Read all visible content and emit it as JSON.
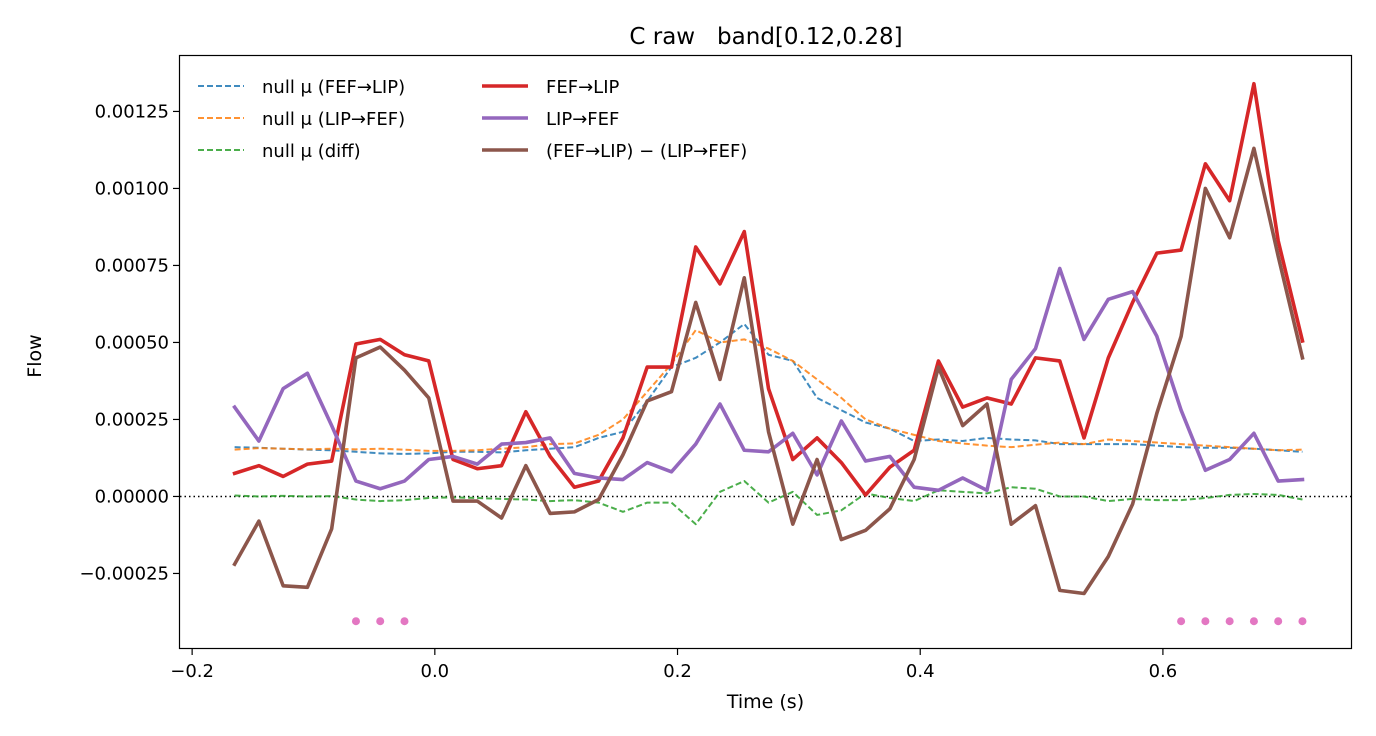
{
  "chart_data": {
    "type": "line",
    "title": "C raw   band[0.12,0.28]",
    "xlabel": "Time (s)",
    "ylabel": "Flow",
    "xlim": [
      -0.21,
      0.755
    ],
    "ylim": [
      -0.000492,
      0.00143
    ],
    "xticks": [
      -0.2,
      0.0,
      0.2,
      0.4,
      0.6
    ],
    "xtick_labels": [
      "−0.2",
      "0.0",
      "0.2",
      "0.4",
      "0.6"
    ],
    "yticks": [
      -0.00025,
      0.0,
      0.00025,
      0.0005,
      0.00075,
      0.001,
      0.00125
    ],
    "ytick_labels": [
      "−0.00025",
      "0.00000",
      "0.00025",
      "0.00050",
      "0.00075",
      "0.00100",
      "0.00125"
    ],
    "grid": false,
    "legend_position": "upper-left",
    "zero_line": true,
    "x": [
      -0.165,
      -0.145,
      -0.125,
      -0.105,
      -0.085,
      -0.065,
      -0.045,
      -0.025,
      -0.005,
      0.015,
      0.035,
      0.055,
      0.075,
      0.095,
      0.115,
      0.135,
      0.155,
      0.175,
      0.195,
      0.215,
      0.235,
      0.255,
      0.275,
      0.295,
      0.315,
      0.335,
      0.355,
      0.375,
      0.395,
      0.415,
      0.435,
      0.455,
      0.475,
      0.495,
      0.515,
      0.535,
      0.555,
      0.575,
      0.595,
      0.615,
      0.635,
      0.655,
      0.675,
      0.695,
      0.715
    ],
    "series": [
      {
        "name": "null μ (FEF→LIP)",
        "style": "dashed",
        "color": "#1f77b4",
        "values": [
          0.00016,
          0.000158,
          0.000155,
          0.000152,
          0.00015,
          0.000145,
          0.00014,
          0.000138,
          0.00014,
          0.000145,
          0.000145,
          0.000143,
          0.00015,
          0.000155,
          0.00016,
          0.00019,
          0.00021,
          0.00031,
          0.00042,
          0.00045,
          0.0005,
          0.00056,
          0.00046,
          0.00044,
          0.00032,
          0.00028,
          0.00024,
          0.00022,
          0.00018,
          0.000185,
          0.00018,
          0.00019,
          0.000185,
          0.000182,
          0.00017,
          0.00017,
          0.00017,
          0.00017,
          0.000165,
          0.00016,
          0.000158,
          0.000158,
          0.000155,
          0.00015,
          0.000145
        ]
      },
      {
        "name": "null μ (LIP→FEF)",
        "style": "dashed",
        "color": "#ff7f0e",
        "values": [
          0.000152,
          0.000157,
          0.000155,
          0.000153,
          0.000155,
          0.000153,
          0.000155,
          0.000152,
          0.000148,
          0.000148,
          0.00015,
          0.000155,
          0.00016,
          0.00017,
          0.000172,
          0.0002,
          0.00025,
          0.00034,
          0.00043,
          0.00054,
          0.0005,
          0.00051,
          0.00048,
          0.00044,
          0.00038,
          0.00032,
          0.00025,
          0.00022,
          0.0002,
          0.00018,
          0.000172,
          0.000165,
          0.00016,
          0.000168,
          0.000175,
          0.00017,
          0.000185,
          0.00018,
          0.000175,
          0.00017,
          0.000165,
          0.00016,
          0.000155,
          0.00015,
          0.000152
        ]
      },
      {
        "name": "null μ (diff)",
        "style": "dashed",
        "color": "#2ca02c",
        "values": [
          3e-06,
          0.0,
          2e-06,
          0.0,
          1e-06,
          -1e-05,
          -1.5e-05,
          -1.2e-05,
          -5e-06,
          -3e-06,
          -5e-06,
          -8e-06,
          -1e-05,
          -1.5e-05,
          -1.2e-05,
          -2e-05,
          -5e-05,
          -2e-05,
          -2e-05,
          -9e-05,
          1.5e-05,
          5e-05,
          -2e-05,
          1.5e-05,
          -6e-05,
          -4.5e-05,
          1e-05,
          -5e-06,
          -1.5e-05,
          2e-05,
          1.5e-05,
          1e-05,
          3e-05,
          2.5e-05,
          0.0,
          0.0,
          -1.5e-05,
          -8e-06,
          -1.2e-05,
          -1.2e-05,
          -5e-06,
          5e-06,
          8e-06,
          5e-06,
          -1e-05
        ]
      },
      {
        "name": "FEF→LIP",
        "style": "solid",
        "color": "#d62728",
        "values": [
          7.5e-05,
          0.0001,
          6.5e-05,
          0.000105,
          0.000115,
          0.000495,
          0.00051,
          0.00046,
          0.00044,
          0.00012,
          9e-05,
          0.0001,
          0.000275,
          0.00013,
          3e-05,
          5e-05,
          0.00019,
          0.00042,
          0.00042,
          0.00081,
          0.00069,
          0.00086,
          0.00035,
          0.00012,
          0.00019,
          0.00011,
          5e-06,
          9.5e-05,
          0.00015,
          0.00044,
          0.00029,
          0.00032,
          0.0003,
          0.00045,
          0.00044,
          0.00019,
          0.00045,
          0.00063,
          0.00079,
          0.0008,
          0.00108,
          0.00096,
          0.00134,
          0.00083,
          0.000505
        ]
      },
      {
        "name": "LIP→FEF",
        "style": "solid",
        "color": "#9467bd",
        "values": [
          0.00029,
          0.00018,
          0.00035,
          0.0004,
          0.00023,
          5e-05,
          2.5e-05,
          5e-05,
          0.00012,
          0.00013,
          0.000105,
          0.00017,
          0.000175,
          0.00019,
          7.5e-05,
          6e-05,
          5.5e-05,
          0.00011,
          8e-05,
          0.00017,
          0.0003,
          0.00015,
          0.000145,
          0.000205,
          7e-05,
          0.000245,
          0.000115,
          0.00013,
          3e-05,
          2e-05,
          6e-05,
          2e-05,
          0.00038,
          0.00048,
          0.00074,
          0.00051,
          0.00064,
          0.000665,
          0.00052,
          0.00028,
          8.5e-05,
          0.00012,
          0.000205,
          5e-05,
          5.5e-05
        ]
      },
      {
        "name": "(FEF→LIP) − (LIP→FEF)",
        "style": "solid",
        "color": "#8c564b",
        "values": [
          -0.00022,
          -8e-05,
          -0.00029,
          -0.000295,
          -0.000105,
          0.00045,
          0.000485,
          0.00041,
          0.00032,
          -1.5e-05,
          -1.5e-05,
          -7e-05,
          0.0001,
          -5.5e-05,
          -5e-05,
          -1e-05,
          0.000135,
          0.00031,
          0.00034,
          0.00063,
          0.00038,
          0.00071,
          0.00021,
          -9e-05,
          0.00012,
          -0.00014,
          -0.00011,
          -4e-05,
          0.00012,
          0.00042,
          0.00023,
          0.0003,
          -9e-05,
          -3e-05,
          -0.000305,
          -0.000315,
          -0.000195,
          -2.5e-05,
          0.00027,
          0.00052,
          0.001,
          0.00084,
          0.00113,
          0.00078,
          0.00045
        ]
      }
    ],
    "markers": {
      "color": "#e377c2",
      "y": -0.000405,
      "x": [
        -0.065,
        -0.045,
        -0.025,
        0.615,
        0.635,
        0.655,
        0.675,
        0.695,
        0.715
      ]
    }
  }
}
